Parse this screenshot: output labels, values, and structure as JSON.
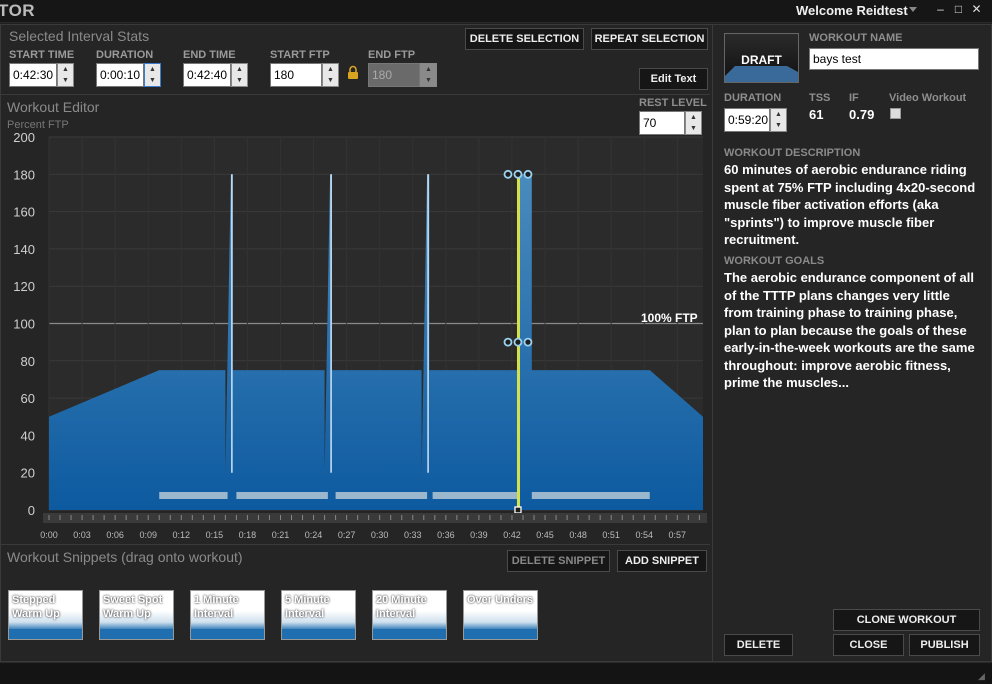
{
  "app_title": "TOR",
  "welcome": "Welcome Reidtest",
  "window_controls": {
    "minimize": "–",
    "maximize": "□",
    "close": "✕"
  },
  "interval_stats": {
    "title": "Selected Interval Stats",
    "start_time_label": "START TIME",
    "start_time": "0:42:30",
    "duration_label": "DURATION",
    "duration": "0:00:10",
    "end_time_label": "END TIME",
    "end_time": "0:42:40",
    "start_ftp_label": "START FTP",
    "start_ftp": "180",
    "end_ftp_label": "END FTP",
    "end_ftp": "180",
    "delete_selection": "DELETE SELECTION",
    "repeat_selection": "REPEAT SELECTION",
    "edit_text": "Edit Text"
  },
  "editor": {
    "title": "Workout Editor",
    "subtitle": "Percent FTP",
    "rest_level_label": "REST LEVEL",
    "rest_level": "70",
    "ftp_line_label": "100% FTP"
  },
  "chart_data": {
    "type": "area",
    "ylabel": "Percent FTP",
    "ylim": [
      0,
      200
    ],
    "xlim_minutes": [
      0,
      59.33
    ],
    "y_ticks": [
      "200",
      "180",
      "160",
      "140",
      "120",
      "100",
      "80",
      "60",
      "40",
      "20",
      "0"
    ],
    "x_ticks": [
      "0:00",
      "0:03",
      "0:06",
      "0:09",
      "0:12",
      "0:15",
      "0:18",
      "0:21",
      "0:24",
      "0:27",
      "0:30",
      "0:33",
      "0:36",
      "0:39",
      "0:42",
      "0:45",
      "0:48",
      "0:51",
      "0:54",
      "0:57"
    ],
    "ftp_reference": 100,
    "series": [
      {
        "x_minutes": [
          0,
          10,
          16,
          16,
          16.5,
          16.67,
          16.67,
          25,
          25,
          25.5,
          25.67,
          25.67,
          33.8,
          33.8,
          34.3,
          34.5,
          34.5,
          42.5,
          42.5,
          42.67,
          43.8,
          43.8,
          54.5,
          59.33
        ],
        "values": [
          50,
          75,
          75,
          20,
          180,
          180,
          75,
          75,
          20,
          180,
          180,
          75,
          75,
          20,
          180,
          180,
          75,
          75,
          180,
          180,
          180,
          75,
          75,
          50
        ]
      }
    ],
    "selection": {
      "start_minutes": 42.5,
      "end_minutes": 42.67,
      "level": 180
    }
  },
  "snippets": {
    "title": "Workout Snippets (drag onto workout)",
    "delete_snippet": "DELETE SNIPPET",
    "add_snippet": "ADD SNIPPET",
    "items": [
      {
        "label": "Stepped Warm Up"
      },
      {
        "label": "Sweet Spot Warm Up"
      },
      {
        "label": "1 Minute Interval"
      },
      {
        "label": "5 Minute Interval"
      },
      {
        "label": "20 Minute Interval"
      },
      {
        "label": "Over Unders"
      }
    ]
  },
  "details": {
    "draft": "DRAFT",
    "workout_name_label": "WORKOUT NAME",
    "workout_name": "bays test",
    "duration_label": "DURATION",
    "duration": "0:59:20",
    "tss_label": "TSS",
    "tss": "61",
    "if_label": "IF",
    "if": "0.79",
    "video_label": "Video Workout",
    "description_label": "WORKOUT DESCRIPTION",
    "description": "60 minutes of aerobic endurance riding spent at 75% FTP including 4x20-second muscle fiber activation efforts (aka \"sprints\") to improve muscle fiber recruitment.",
    "goals_label": "WORKOUT GOALS",
    "goals": "The aerobic endurance component of all of the TTTP plans changes very little from training phase to training phase, plan to plan because the goals of these early-in-the-week workouts are the same throughout: improve aerobic fitness, prime the muscles...",
    "clone": "CLONE WORKOUT",
    "delete": "DELETE",
    "close": "CLOSE",
    "publish": "PUBLISH"
  }
}
